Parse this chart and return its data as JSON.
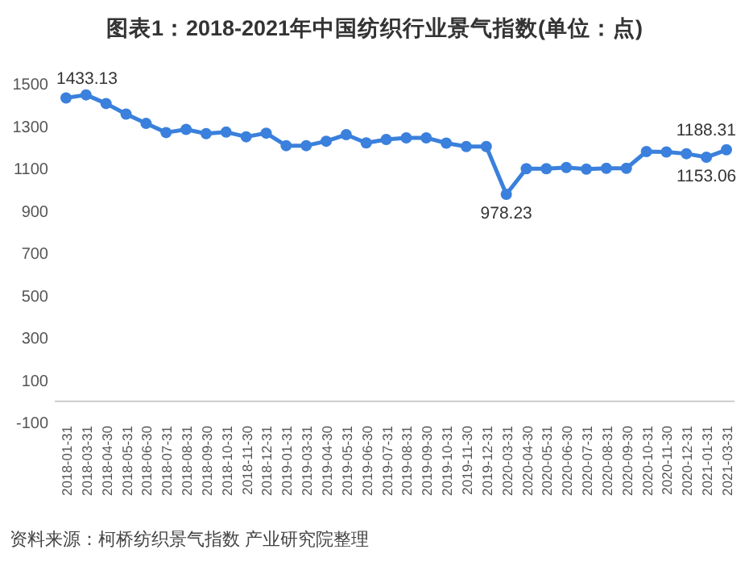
{
  "chart_data": {
    "type": "line",
    "title": "图表1：2018-2021年中国纺织行业景气指数(单位：点)",
    "categories": [
      "2018-01-31",
      "2018-03-31",
      "2018-04-30",
      "2018-05-31",
      "2018-06-30",
      "2018-07-31",
      "2018-08-31",
      "2018-09-30",
      "2018-10-31",
      "2018-11-30",
      "2018-12-31",
      "2019-01-31",
      "2019-03-31",
      "2019-04-30",
      "2019-05-31",
      "2019-06-30",
      "2019-07-31",
      "2019-08-31",
      "2019-09-30",
      "2019-10-31",
      "2019-11-30",
      "2019-12-31",
      "2020-03-31",
      "2020-04-30",
      "2020-05-31",
      "2020-06-30",
      "2020-07-31",
      "2020-08-31",
      "2020-09-30",
      "2020-10-31",
      "2020-11-30",
      "2020-12-31",
      "2021-01-31",
      "2021-03-31"
    ],
    "series": [
      {
        "color": "#3a80dc",
        "values": [
          1433.13,
          1448,
          1407,
          1357,
          1313,
          1270,
          1285,
          1265,
          1272,
          1250,
          1267,
          1208,
          1208,
          1229,
          1260,
          1221,
          1237,
          1245,
          1245,
          1220,
          1204,
          1204,
          978.23,
          1099,
          1099,
          1105,
          1097,
          1101,
          1101,
          1180,
          1178,
          1170,
          1153.06,
          1188.31
        ],
        "value_labels": [
          "1433.13",
          null,
          null,
          null,
          null,
          null,
          null,
          null,
          null,
          null,
          null,
          null,
          null,
          null,
          null,
          null,
          null,
          null,
          null,
          null,
          null,
          null,
          "978.23",
          null,
          null,
          null,
          null,
          null,
          null,
          null,
          null,
          null,
          "1153.06",
          "1188.31"
        ]
      }
    ],
    "ylim": [
      -100,
      1500
    ],
    "yticks": [
      -100,
      100,
      300,
      500,
      700,
      900,
      1100,
      1300,
      1500
    ],
    "grid": false,
    "marker": "circle",
    "line_style": "solid",
    "annotations": [
      "资料来源：柯桥纺织景气指数 产业研究院整理"
    ]
  }
}
